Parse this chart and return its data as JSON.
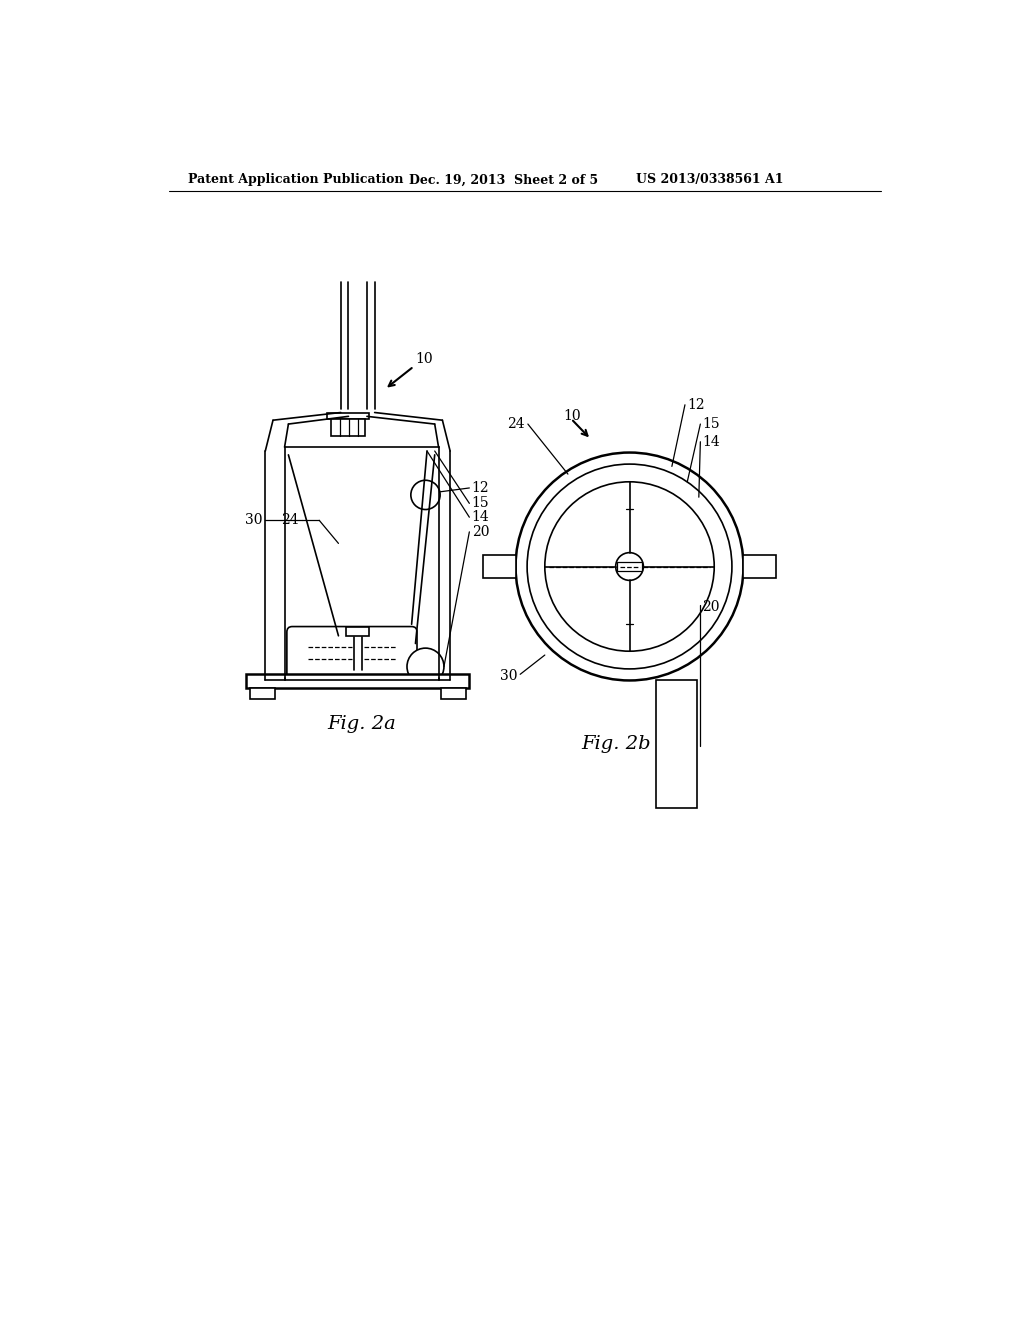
{
  "background_color": "#ffffff",
  "header_left": "Patent Application Publication",
  "header_mid": "Dec. 19, 2013  Sheet 2 of 5",
  "header_right": "US 2013/0338561 A1",
  "fig2a_label": "Fig. 2a",
  "fig2b_label": "Fig. 2b",
  "line_color": "#000000",
  "text_color": "#000000"
}
